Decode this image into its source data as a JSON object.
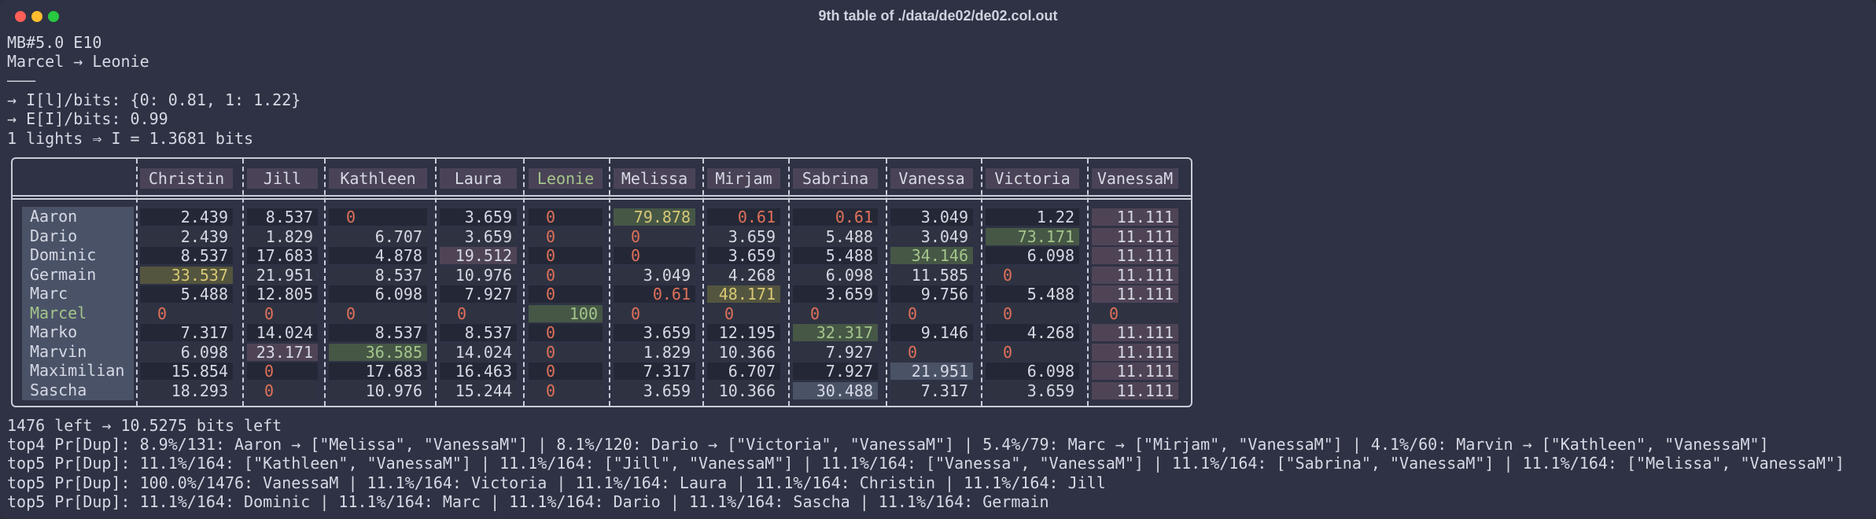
{
  "window": {
    "title": "9th table of ./data/de02/de02.col.out"
  },
  "header_lines": [
    "MB#5.0 E10",
    "Marcel → Leonie",
    "———",
    "→ I[l]/bits: {0: 0.81, 1: 1.22}",
    "→ E[I]/bits: 0.99",
    "1 lights ⇒ I = 1.3681 bits"
  ],
  "table": {
    "columns": [
      "Christin",
      "Jill",
      "Kathleen",
      "Laura",
      "Leonie",
      "Melissa",
      "Mirjam",
      "Sabrina",
      "Vanessa",
      "Victoria",
      "VanessaM"
    ],
    "rows": [
      {
        "name": "Aaron",
        "values": [
          "2.439",
          "8.537",
          "0",
          "3.659",
          "0",
          "79.878",
          "0.61",
          "0.61",
          "3.049",
          "1.22",
          "11.111"
        ]
      },
      {
        "name": "Dario",
        "values": [
          "2.439",
          "1.829",
          "6.707",
          "3.659",
          "0",
          "0",
          "3.659",
          "5.488",
          "3.049",
          "73.171",
          "11.111"
        ]
      },
      {
        "name": "Dominic",
        "values": [
          "8.537",
          "17.683",
          "4.878",
          "19.512",
          "0",
          "0",
          "3.659",
          "5.488",
          "34.146",
          "6.098",
          "11.111"
        ]
      },
      {
        "name": "Germain",
        "values": [
          "33.537",
          "21.951",
          "8.537",
          "10.976",
          "0",
          "3.049",
          "4.268",
          "6.098",
          "11.585",
          "0",
          "11.111"
        ]
      },
      {
        "name": "Marc",
        "values": [
          "5.488",
          "12.805",
          "6.098",
          "7.927",
          "0",
          "0.61",
          "48.171",
          "3.659",
          "9.756",
          "5.488",
          "11.111"
        ]
      },
      {
        "name": "Marcel",
        "values": [
          "0",
          "0",
          "0",
          "0",
          "100",
          "0",
          "0",
          "0",
          "0",
          "0",
          "0"
        ]
      },
      {
        "name": "Marko",
        "values": [
          "7.317",
          "14.024",
          "8.537",
          "8.537",
          "0",
          "3.659",
          "12.195",
          "32.317",
          "9.146",
          "4.268",
          "11.111"
        ]
      },
      {
        "name": "Marvin",
        "values": [
          "6.098",
          "23.171",
          "36.585",
          "14.024",
          "0",
          "1.829",
          "10.366",
          "7.927",
          "0",
          "0",
          "11.111"
        ]
      },
      {
        "name": "Maximilian",
        "values": [
          "15.854",
          "0",
          "17.683",
          "16.463",
          "0",
          "7.317",
          "6.707",
          "7.927",
          "21.951",
          "6.098",
          "11.111"
        ]
      },
      {
        "name": "Sascha",
        "values": [
          "18.293",
          "0",
          "10.976",
          "15.244",
          "0",
          "3.659",
          "10.366",
          "30.488",
          "7.317",
          "3.659",
          "11.111"
        ]
      }
    ],
    "colors": {
      "zero": "#e0705a",
      "highlight": "#a3c58a",
      "yellow": "#d8c875"
    }
  },
  "footer_lines": [
    "1476 left → 10.5275 bits left",
    "top4 Pr[Dup]: 8.9%/131: Aaron → [\"Melissa\", \"VanessaM\"] | 8.1%/120: Dario → [\"Victoria\", \"VanessaM\"] | 5.4%/79: Marc → [\"Mirjam\", \"VanessaM\"] | 4.1%/60: Marvin → [\"Kathleen\", \"VanessaM\"]",
    "top5 Pr[Dup]: 11.1%/164: [\"Kathleen\", \"VanessaM\"] | 11.1%/164: [\"Jill\", \"VanessaM\"] | 11.1%/164: [\"Vanessa\", \"VanessaM\"] | 11.1%/164: [\"Sabrina\", \"VanessaM\"] | 11.1%/164: [\"Melissa\", \"VanessaM\"]",
    "top5 Pr[Dup]: 100.0%/1476: VanessaM | 11.1%/164: Victoria | 11.1%/164: Laura | 11.1%/164: Christin | 11.1%/164: Jill",
    "top5 Pr[Dup]: 11.1%/164: Dominic | 11.1%/164: Marc | 11.1%/164: Dario | 11.1%/164: Sascha | 11.1%/164: Germain"
  ]
}
